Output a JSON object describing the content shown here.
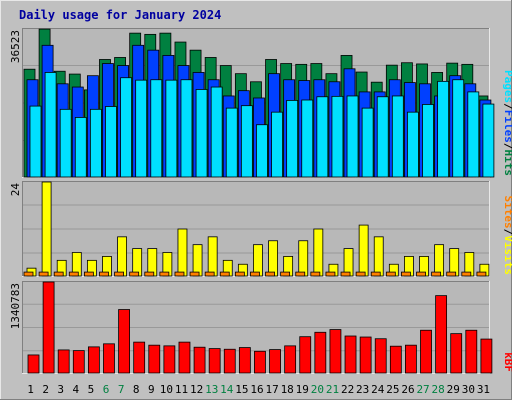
{
  "title": "Daily usage for January 2024",
  "colors": {
    "background": "#c0c0c0",
    "plot_background": "#b8b8b8",
    "frame_dark": "#808080",
    "frame_light": "#e8e8e8",
    "title": "#0000a0",
    "axis_text": "#000000",
    "weekend_day": "#008040",
    "hits": "#008040",
    "files": "#0040ff",
    "pages": "#00e0ff",
    "visits": "#ffff00",
    "sites": "#ff8000",
    "kbytes": "#ff0000"
  },
  "chart_data": [
    {
      "type": "bar",
      "name": "hits-files-pages",
      "ymax_label": "36523",
      "ylim": [
        0,
        36523
      ],
      "legend": [
        "Pages",
        "/",
        "Files",
        "/",
        "Hits"
      ],
      "categories": [
        "1",
        "2",
        "3",
        "4",
        "5",
        "6",
        "7",
        "8",
        "9",
        "10",
        "11",
        "12",
        "13",
        "14",
        "15",
        "16",
        "17",
        "18",
        "19",
        "20",
        "21",
        "22",
        "23",
        "24",
        "25",
        "26",
        "27",
        "28",
        "29",
        "30",
        "31"
      ],
      "weekend_days": [
        6,
        7,
        13,
        14,
        20,
        21,
        27,
        28
      ],
      "series": [
        {
          "name": "Hits",
          "values": [
            26600,
            36500,
            26100,
            25400,
            21500,
            29000,
            29500,
            35500,
            35200,
            35500,
            33300,
            31300,
            29500,
            27500,
            25500,
            23500,
            29000,
            28000,
            27800,
            28000,
            25500,
            30000,
            25900,
            23400,
            27600,
            28200,
            27900,
            25800,
            28100,
            27800,
            20000
          ]
        },
        {
          "name": "Files",
          "values": [
            24000,
            32500,
            23000,
            22200,
            25000,
            28000,
            27500,
            32500,
            31300,
            30000,
            27500,
            25800,
            24000,
            20000,
            21300,
            19500,
            25500,
            24000,
            23800,
            24000,
            23500,
            26700,
            21000,
            21000,
            24000,
            23300,
            23000,
            20000,
            25000,
            23000,
            19000
          ]
        },
        {
          "name": "Pages",
          "values": [
            17500,
            25800,
            16700,
            14700,
            16700,
            17400,
            24500,
            23900,
            24000,
            23900,
            24000,
            21600,
            22200,
            17000,
            17600,
            12900,
            16000,
            18900,
            19000,
            19800,
            19900,
            20000,
            17000,
            19800,
            20000,
            16000,
            17900,
            23600,
            24000,
            21000,
            18000
          ]
        }
      ]
    },
    {
      "type": "bar",
      "name": "visits-sites",
      "ymax_label": "24",
      "ylim": [
        0,
        24
      ],
      "legend": [
        "Sites",
        "/",
        "Visits"
      ],
      "categories": [
        "1",
        "2",
        "3",
        "4",
        "5",
        "6",
        "7",
        "8",
        "9",
        "10",
        "11",
        "12",
        "13",
        "14",
        "15",
        "16",
        "17",
        "18",
        "19",
        "20",
        "21",
        "22",
        "23",
        "24",
        "25",
        "26",
        "27",
        "28",
        "29",
        "30",
        "31"
      ],
      "series": [
        {
          "name": "Visits",
          "values": [
            2,
            24,
            4,
            6,
            4,
            5,
            10,
            7,
            7,
            6,
            12,
            8,
            10,
            4,
            3,
            8,
            9,
            5,
            9,
            12,
            3,
            7,
            13,
            10,
            3,
            5,
            5,
            8,
            7,
            6,
            3
          ]
        },
        {
          "name": "Sites",
          "values": [
            1,
            1,
            1,
            1,
            1,
            1,
            1,
            1,
            1,
            1,
            1,
            1,
            1,
            1,
            1,
            1,
            1,
            1,
            1,
            1,
            1,
            1,
            1,
            1,
            1,
            1,
            1,
            1,
            1,
            1,
            1
          ]
        }
      ]
    },
    {
      "type": "bar",
      "name": "kbytes",
      "ymax_label": "1340783",
      "ylim": [
        0,
        1340783
      ],
      "legend": [
        "kB",
        "F"
      ],
      "categories": [
        "1",
        "2",
        "3",
        "4",
        "5",
        "6",
        "7",
        "8",
        "9",
        "10",
        "11",
        "12",
        "13",
        "14",
        "15",
        "16",
        "17",
        "18",
        "19",
        "20",
        "21",
        "22",
        "23",
        "24",
        "25",
        "26",
        "27",
        "28",
        "29",
        "30",
        "31"
      ],
      "series": [
        {
          "name": "kB",
          "values": [
            266000,
            1340783,
            340000,
            330000,
            385000,
            430000,
            935000,
            455000,
            410000,
            400000,
            455000,
            380000,
            360000,
            350000,
            375000,
            320000,
            345000,
            400000,
            535000,
            600000,
            640000,
            545000,
            530000,
            505000,
            395000,
            410000,
            630000,
            1140000,
            580000,
            630000,
            500000
          ]
        }
      ]
    }
  ]
}
